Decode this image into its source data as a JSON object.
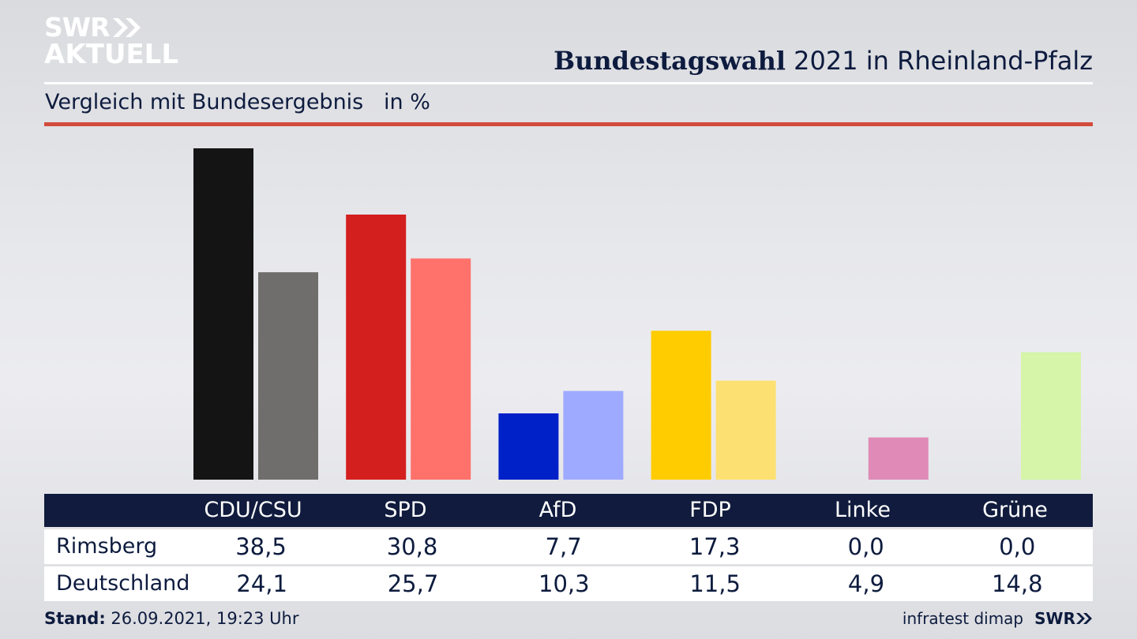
{
  "header": {
    "logo_line1": "SWR",
    "logo_line2": "AKTUELL",
    "title_bold": "Bundestagswahl",
    "title_rest": " 2021 in Rheinland-Pfalz",
    "subtitle": "Vergleich mit Bundesergebnis   in %"
  },
  "chart_data": {
    "type": "bar",
    "categories": [
      "CDU/CSU",
      "SPD",
      "AfD",
      "FDP",
      "Linke",
      "Grüne"
    ],
    "series": [
      {
        "name": "Rimsberg",
        "values": [
          38.5,
          30.8,
          7.7,
          17.3,
          0.0,
          0.0
        ],
        "colors": [
          "#141414",
          "#d41f1f",
          "#0020c8",
          "#ffcc00",
          "#b4307a",
          "#46962b"
        ]
      },
      {
        "name": "Deutschland",
        "values": [
          24.1,
          25.7,
          10.3,
          11.5,
          4.9,
          14.8
        ],
        "colors": [
          "#6f6e6c",
          "#ff716b",
          "#9eaaff",
          "#fde072",
          "#df8ab7",
          "#d6f5a8"
        ]
      }
    ],
    "ylim": [
      0,
      38.5
    ],
    "grid": false
  },
  "table": {
    "rows": [
      {
        "label": "Rimsberg",
        "values": [
          "38,5",
          "30,8",
          "7,7",
          "17,3",
          "0,0",
          "0,0"
        ]
      },
      {
        "label": "Deutschland",
        "values": [
          "24,1",
          "25,7",
          "10,3",
          "11,5",
          "4,9",
          "14,8"
        ]
      }
    ]
  },
  "footer": {
    "stand_label": "Stand:",
    "stand_value": " 26.09.2021, 19:23 Uhr",
    "source": "infratest dimap",
    "brand": "SWR"
  }
}
